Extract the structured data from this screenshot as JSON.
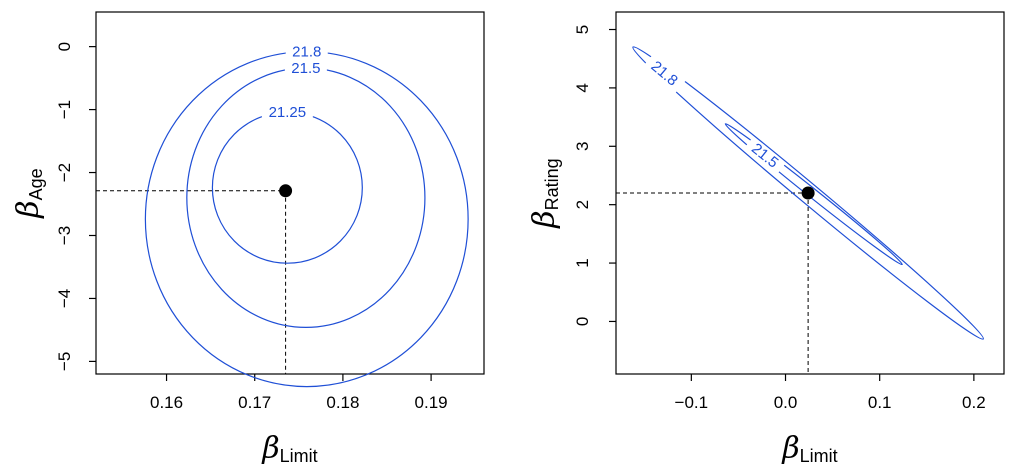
{
  "chart_data": [
    {
      "type": "contour",
      "xlabel": "β",
      "xlabel_sub": "Limit",
      "ylabel": "β",
      "ylabel_sub": "Age",
      "xlim": [
        0.152,
        0.196
      ],
      "ylim": [
        -5.2,
        0.55
      ],
      "xticks": [
        0.16,
        0.17,
        0.18,
        0.19
      ],
      "xtick_labels": [
        "0.16",
        "0.17",
        "0.18",
        "0.19"
      ],
      "yticks": [
        0,
        -1,
        -2,
        -3,
        -4,
        -5
      ],
      "ytick_labels": [
        "0",
        "−1",
        "−2",
        "−3",
        "−4",
        "−5"
      ],
      "center": {
        "x": 0.1735,
        "y": -2.29
      },
      "contours": [
        {
          "level": "21.25",
          "cx": 0.1737,
          "cy": -2.24,
          "rx": 0.0085,
          "ry": 1.2,
          "angle_deg": 0
        },
        {
          "level": "21.5",
          "cx": 0.1758,
          "cy": -2.4,
          "rx": 0.0135,
          "ry": 2.06,
          "angle_deg": 0
        },
        {
          "level": "21.8",
          "cx": 0.1759,
          "cy": -2.74,
          "rx": 0.0183,
          "ry": 2.66,
          "angle_deg": 0
        }
      ]
    },
    {
      "type": "contour",
      "xlabel": "β",
      "xlabel_sub": "Limit",
      "ylabel": "β",
      "ylabel_sub": "Rating",
      "xlim": [
        -0.18,
        0.232
      ],
      "ylim": [
        -0.9,
        5.3
      ],
      "xticks": [
        -0.1,
        0.0,
        0.1,
        0.2
      ],
      "xtick_labels": [
        "−0.1",
        "0.0",
        "0.1",
        "0.2"
      ],
      "yticks": [
        0,
        1,
        2,
        3,
        4,
        5
      ],
      "ytick_labels": [
        "0",
        "1",
        "2",
        "3",
        "4",
        "5"
      ],
      "center": {
        "x": 0.024,
        "y": 2.2
      },
      "contours": [
        {
          "level": "21.5",
          "cx": 0.03,
          "cy": 2.18,
          "rx_px": 113,
          "ry_px": 4.5,
          "angle_deg": 38.5
        },
        {
          "level": "21.8",
          "cx": 0.024,
          "cy": 2.2,
          "rx_px": 228,
          "ry_px": 10,
          "angle_deg": 39.8
        }
      ]
    }
  ]
}
